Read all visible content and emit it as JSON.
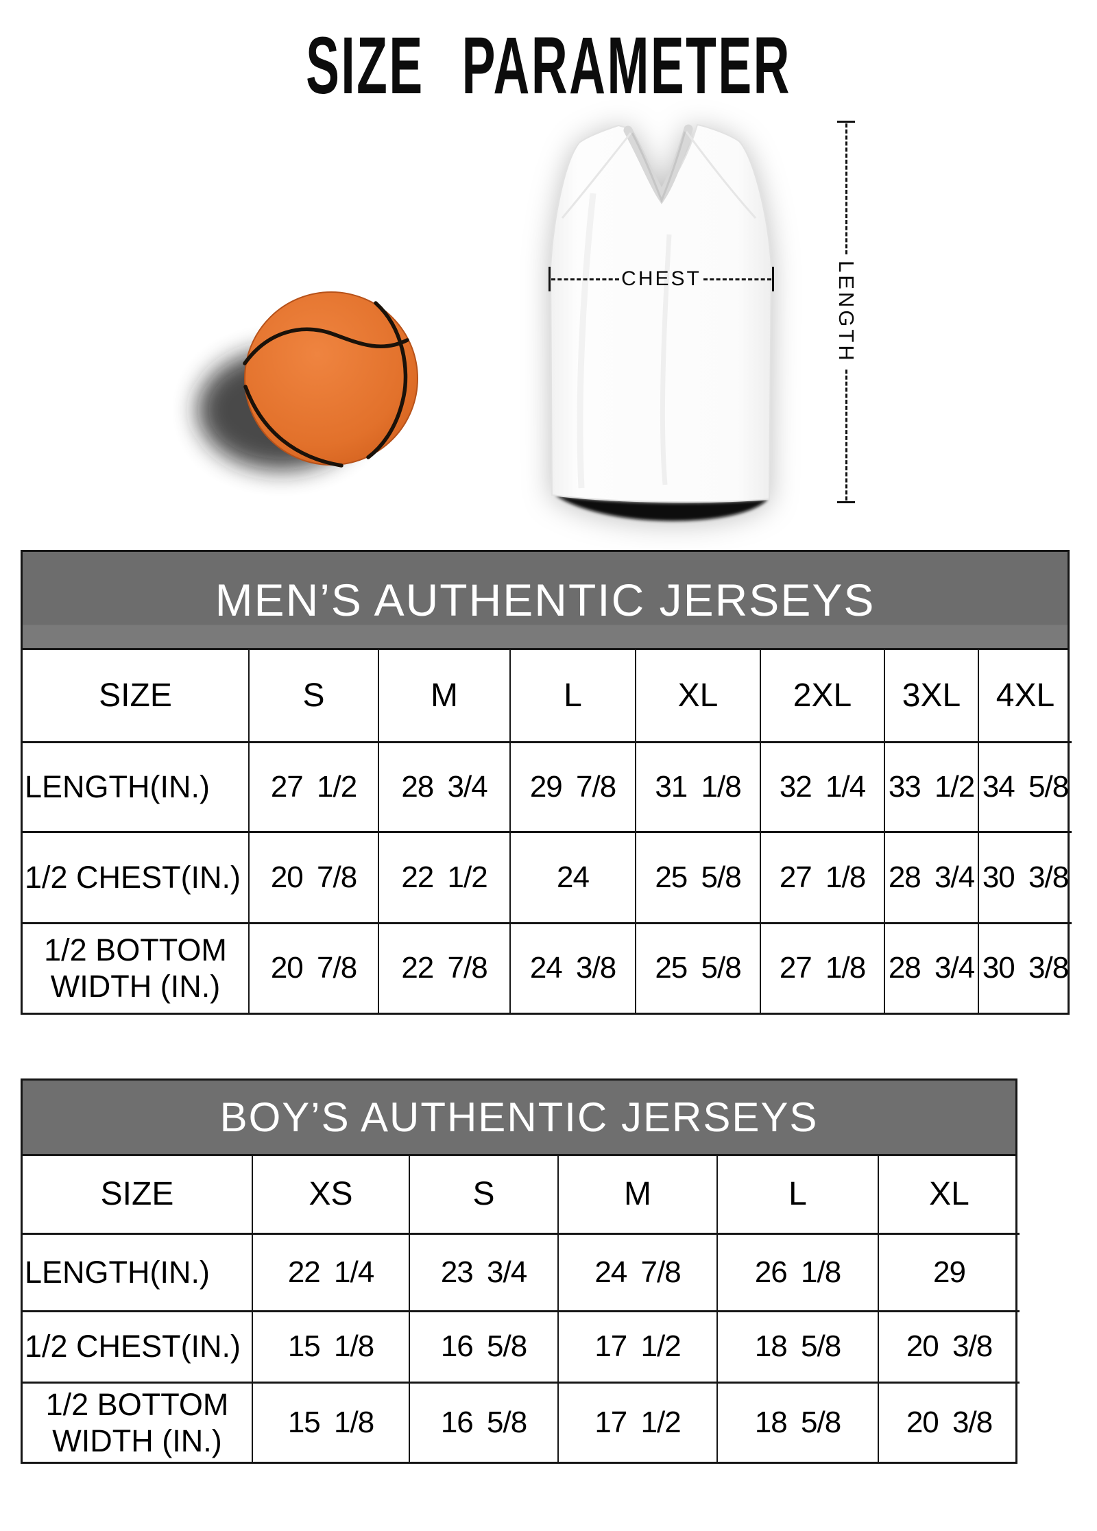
{
  "page": {
    "title": "SIZE PARAMETER"
  },
  "diagram": {
    "chest_label": "CHEST",
    "length_label": "LENGTH",
    "icons": {
      "basketball": "basketball-icon",
      "jersey": "jersey-graphic"
    },
    "colors": {
      "basketball_orange": "#e2712b",
      "seam_black": "#1a120a",
      "shadow_dark": "#1e1e1e",
      "jersey_white": "#fcfcfc"
    }
  },
  "colors": {
    "band_gray": "#6f6f6f",
    "border_black": "#161616",
    "text_black": "#0a0a0a"
  },
  "tables": [
    {
      "id": "mens",
      "title": "MEN’S AUTHENTIC JERSEYS",
      "size_label": "SIZE",
      "columns": [
        "S",
        "M",
        "L",
        "XL",
        "2XL",
        "3XL",
        "4XL"
      ],
      "rows": [
        {
          "label": "LENGTH(IN.)",
          "values": [
            "27 1/2",
            "28 3/4",
            "29 7/8",
            "31 1/8",
            "32 1/4",
            "33 1/2",
            "34 5/8"
          ]
        },
        {
          "label": "1/2 CHEST(IN.)",
          "values": [
            "20 7/8",
            "22 1/2",
            "24",
            "25 5/8",
            "27 1/8",
            "28 3/4",
            "30 3/8"
          ]
        },
        {
          "label": "1/2 BOTTOM WIDTH (IN.)",
          "values": [
            "20 7/8",
            "22 7/8",
            "24 3/8",
            "25 5/8",
            "27 1/8",
            "28 3/4",
            "30 3/8"
          ]
        }
      ]
    },
    {
      "id": "boys",
      "title": "BOY’S AUTHENTIC JERSEYS",
      "size_label": "SIZE",
      "columns": [
        "XS",
        "S",
        "M",
        "L",
        "XL"
      ],
      "rows": [
        {
          "label": "LENGTH(IN.)",
          "values": [
            "22 1/4",
            "23 3/4",
            "24 7/8",
            "26 1/8",
            "29"
          ]
        },
        {
          "label": "1/2 CHEST(IN.)",
          "values": [
            "15 1/8",
            "16 5/8",
            "17 1/2",
            "18 5/8",
            "20 3/8"
          ]
        },
        {
          "label": "1/2 BOTTOM WIDTH (IN.)",
          "values": [
            "15 1/8",
            "16 5/8",
            "17 1/2",
            "18 5/8",
            "20 3/8"
          ]
        }
      ]
    }
  ]
}
